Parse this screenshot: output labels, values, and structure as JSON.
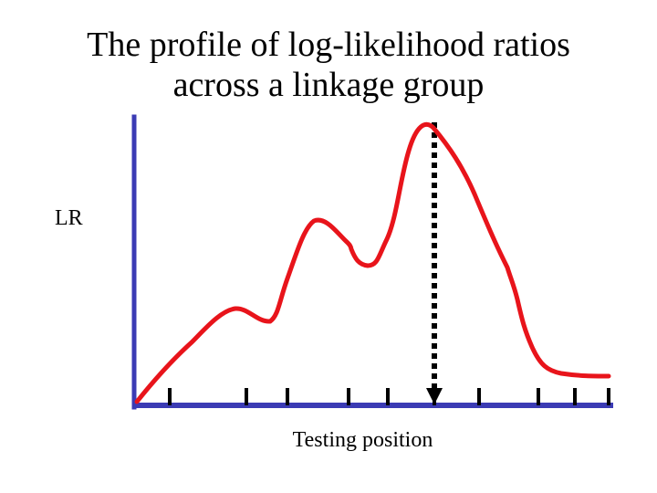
{
  "title": {
    "line1": "The profile of log-likelihood ratios",
    "line2": "across a linkage group"
  },
  "axes": {
    "y_label": "LR",
    "x_label": "Testing position"
  },
  "colors": {
    "axis": "#3b3bb4",
    "curve": "#e8141b",
    "marker": "#000000"
  },
  "tick_count": 10,
  "peak_marker": "dashed-arrow-down-from-peak"
}
